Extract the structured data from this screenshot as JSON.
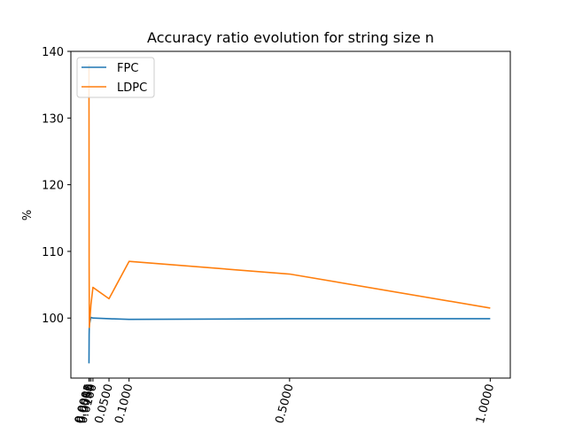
{
  "chart_data": {
    "type": "line",
    "title": "Accuracy ratio evolution for string size n",
    "xlabel": "",
    "ylabel": "%",
    "xlim": [
      -0.045,
      1.05
    ],
    "ylim": [
      91,
      140
    ],
    "yticks": [
      100,
      110,
      120,
      130,
      140
    ],
    "xticks": [
      0.0001,
      0.0005,
      0.001,
      0.005,
      0.01,
      0.05,
      0.1,
      0.5,
      1.0
    ],
    "xtick_labels": [
      "0.0001",
      "0.0005",
      "0.0010",
      "0.0050",
      "0.0100",
      "0.0500",
      "0.1000",
      "0.5000",
      "1.0000"
    ],
    "legend": "top-left",
    "grid": false,
    "x": [
      0.0001,
      0.0005,
      0.001,
      0.005,
      0.01,
      0.05,
      0.1,
      0.5,
      1.0
    ],
    "series": [
      {
        "name": "FPC",
        "color": "#1f77b4",
        "values": [
          93.2,
          97.5,
          99.0,
          100.1,
          100.0,
          99.9,
          99.8,
          99.9,
          99.9
        ]
      },
      {
        "name": "LDPC",
        "color": "#ff7f0e",
        "values": [
          138.0,
          108.0,
          98.6,
          102.0,
          104.6,
          102.9,
          108.5,
          106.6,
          101.5
        ]
      }
    ]
  }
}
